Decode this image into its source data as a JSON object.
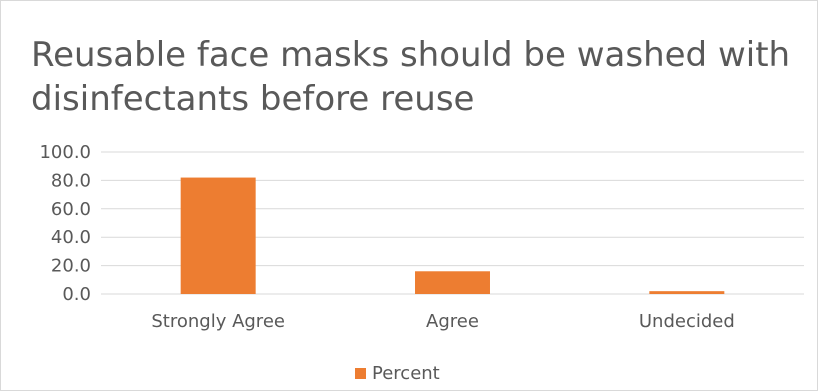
{
  "chart_data": {
    "type": "bar",
    "title": "Reusable face masks should be washed with disinfectants before reuse",
    "categories": [
      "Strongly Agree",
      "Agree",
      "Undecided"
    ],
    "series": [
      {
        "name": "Percent",
        "values": [
          82.0,
          16.0,
          2.0
        ],
        "color": "#ed7d31"
      }
    ],
    "ylim": [
      0,
      100
    ],
    "yticks": [
      "0.0",
      "20.0",
      "40.0",
      "60.0",
      "80.0",
      "100.0"
    ],
    "ytick_values": [
      0,
      20,
      40,
      60,
      80,
      100
    ],
    "grid": true,
    "legend": "bottom",
    "gridline_color": "#d9d9d9"
  }
}
